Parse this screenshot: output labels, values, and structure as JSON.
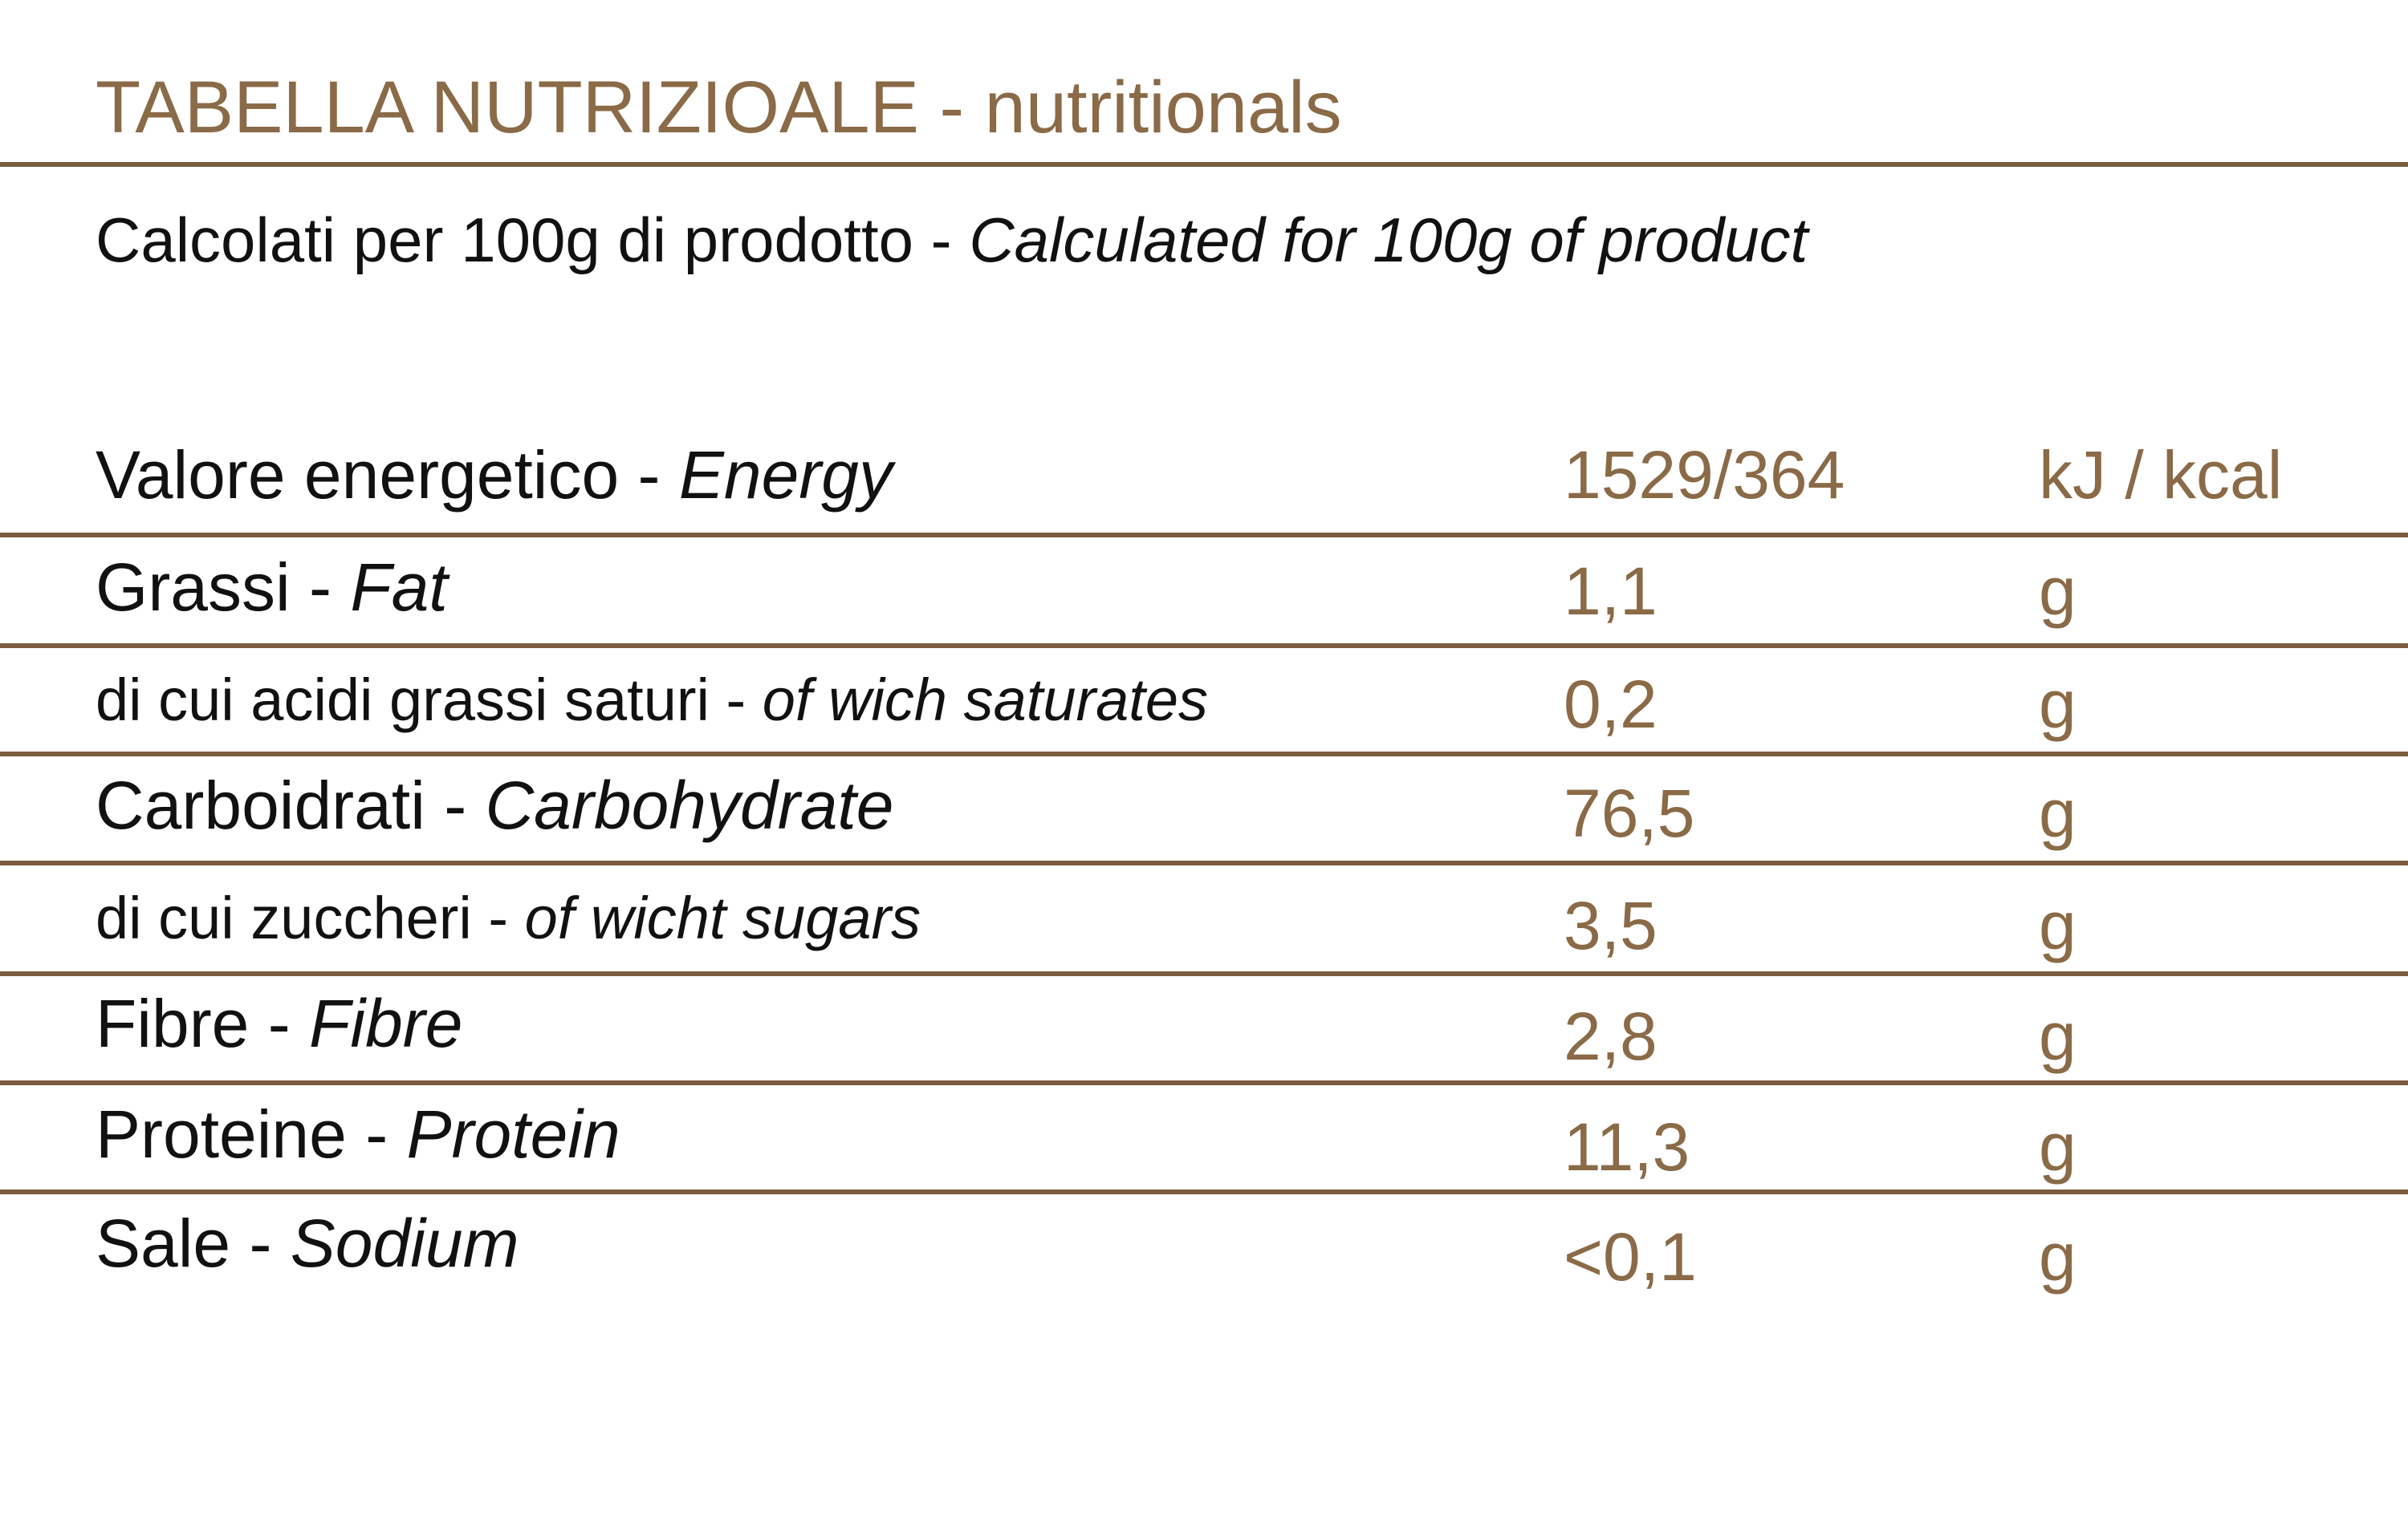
{
  "header": {
    "title": "TABELLA NUTRIZIOALE - nutritionals",
    "subtitle": {
      "it": "Calcolati per 100g di prodotto - ",
      "en": "Calculated for 100g of product"
    }
  },
  "table": {
    "rows": [
      {
        "it": "Valore energetico - ",
        "en": "Energy",
        "value": "1529/364",
        "unit": "kJ / kcal"
      },
      {
        "it": "Grassi - ",
        "en": "Fat",
        "value": "1,1",
        "unit": "g"
      },
      {
        "it": "di cui acidi grassi saturi - ",
        "en": "of wich saturates",
        "value": "0,2",
        "unit": "g"
      },
      {
        "it": "Carboidrati - ",
        "en": "Carbohydrate",
        "value": "76,5",
        "unit": "g"
      },
      {
        "it": "di cui zuccheri - ",
        "en": "of wicht sugars",
        "value": "3,5",
        "unit": "g"
      },
      {
        "it": "Fibre - ",
        "en": "Fibre",
        "value": "2,8",
        "unit": "g"
      },
      {
        "it": "Proteine - ",
        "en": "Protein",
        "value": "11,3",
        "unit": "g"
      },
      {
        "it": "Sale - ",
        "en": "Sodium",
        "value": "<0,1",
        "unit": "g"
      }
    ]
  }
}
